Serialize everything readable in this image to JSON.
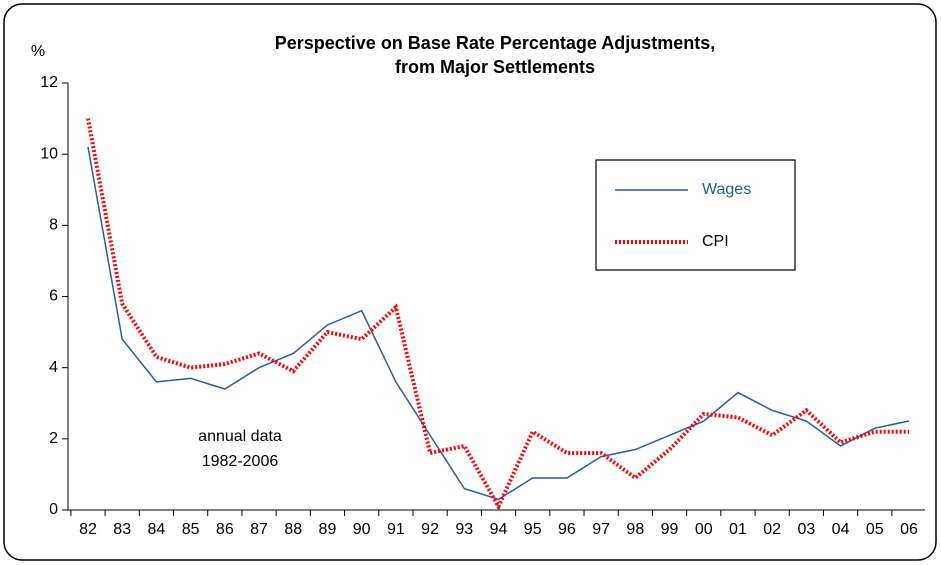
{
  "chart_data": {
    "type": "line",
    "title": [
      "Perspective on Base Rate Percentage Adjustments,",
      "from Major Settlements"
    ],
    "y_label": "%",
    "annotation": [
      "annual data",
      "1982-2006"
    ],
    "categories": [
      "82",
      "83",
      "84",
      "85",
      "86",
      "87",
      "88",
      "89",
      "90",
      "91",
      "92",
      "93",
      "94",
      "95",
      "96",
      "97",
      "98",
      "99",
      "00",
      "01",
      "02",
      "03",
      "04",
      "05",
      "06"
    ],
    "series": [
      {
        "name": "Wages",
        "color": "#1f5fa8",
        "dash": false,
        "values": [
          10.2,
          4.8,
          3.6,
          3.7,
          3.4,
          4.0,
          4.4,
          5.2,
          5.6,
          3.6,
          2.1,
          0.6,
          0.3,
          0.9,
          0.9,
          1.5,
          1.7,
          2.1,
          2.5,
          3.3,
          2.8,
          2.5,
          1.8,
          2.3,
          2.5
        ]
      },
      {
        "name": "CPI",
        "color": "#ff0000",
        "dash": true,
        "values": [
          11.0,
          5.8,
          4.3,
          4.0,
          4.1,
          4.4,
          3.9,
          5.0,
          4.8,
          5.7,
          1.6,
          1.8,
          0.1,
          2.2,
          1.6,
          1.6,
          0.9,
          1.7,
          2.7,
          2.6,
          2.1,
          2.8,
          1.9,
          2.2,
          2.2
        ]
      }
    ],
    "ylim": [
      0,
      12
    ],
    "yticks": [
      0,
      2,
      4,
      6,
      8,
      10,
      12
    ],
    "grid": false
  }
}
